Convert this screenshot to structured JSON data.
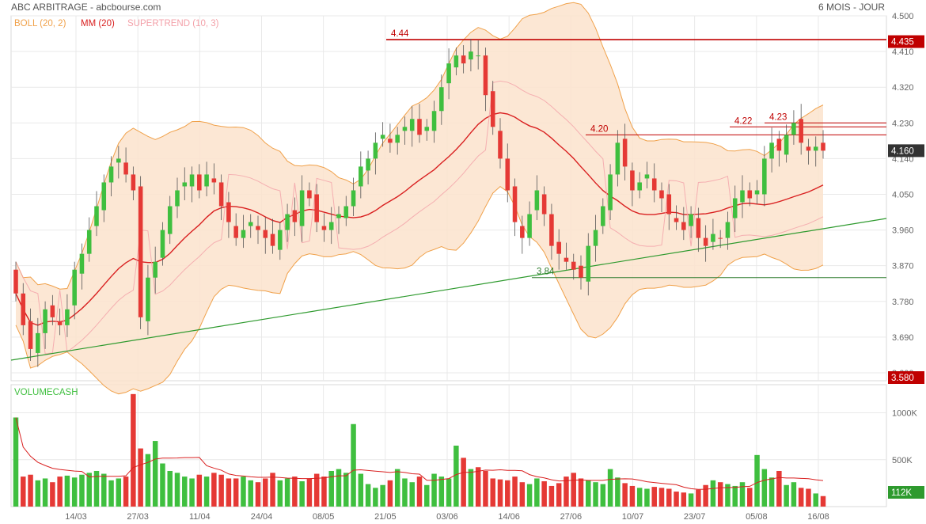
{
  "header": {
    "title": "ABC ARBITRAGE - abcbourse.com",
    "period": "6 MOIS - JOUR"
  },
  "legend": {
    "boll": "BOLL (20, 2)",
    "mm": "MM (20)",
    "supertrend": "SUPERTREND (10, 3)",
    "volume": "VOLUMECASH"
  },
  "colors": {
    "up": "#3fbf3f",
    "down": "#e53935",
    "boll_fill": "#fbe3cd",
    "boll_line": "#f0a14a",
    "mm": "#d92020",
    "supertrend": "#f3a0a8",
    "trendline": "#2e9a2e",
    "level": "#c00000",
    "grid": "#e9e9e9"
  },
  "chart_data": [
    {
      "type": "candlestick",
      "y_axis_ticks": [
        "4.500",
        "4.410",
        "4.320",
        "4.230",
        "4.140",
        "4.050",
        "3.960",
        "3.870",
        "3.780",
        "3.690",
        "3.600"
      ],
      "ylim": [
        3.58,
        4.5
      ],
      "x_tick_labels": [
        "14/03",
        "27/03",
        "11/04",
        "24/04",
        "08/05",
        "21/05",
        "03/06",
        "14/06",
        "27/06",
        "10/07",
        "23/07",
        "05/08",
        "16/08"
      ],
      "price_badges": {
        "high": "4.435",
        "last": "4.160",
        "low": "3.580"
      },
      "level_labels": [
        {
          "label": "4.44",
          "value": 4.44
        },
        {
          "label": "4.22",
          "value": 4.22
        },
        {
          "label": "4.23",
          "value": 4.23
        },
        {
          "label": "4.20",
          "value": 4.2
        },
        {
          "label": "3.84",
          "value": 3.84
        }
      ],
      "close": [
        3.8,
        3.72,
        3.66,
        3.7,
        3.76,
        3.74,
        3.72,
        3.76,
        3.86,
        3.9,
        3.96,
        4.02,
        4.08,
        4.12,
        4.14,
        4.1,
        4.06,
        3.74,
        3.84,
        3.88,
        3.96,
        4.02,
        4.06,
        4.08,
        4.1,
        4.06,
        4.1,
        4.08,
        4.02,
        3.98,
        3.94,
        3.96,
        3.98,
        3.96,
        3.94,
        3.92,
        3.96,
        4.0,
        3.98,
        4.06,
        4.04,
        3.98,
        3.96,
        3.98,
        4.0,
        4.02,
        4.06,
        4.12,
        4.14,
        4.18,
        4.2,
        4.18,
        4.2,
        4.22,
        4.24,
        4.2,
        4.22,
        4.26,
        4.32,
        4.38,
        4.4,
        4.38,
        4.41,
        4.4,
        4.3,
        4.22,
        4.14,
        4.06,
        3.98,
        3.94,
        4.0,
        4.06,
        4.0,
        3.92,
        3.9,
        3.88,
        3.86,
        3.84,
        3.92,
        3.96,
        4.02,
        4.1,
        4.18,
        4.12,
        4.06,
        4.08,
        4.1,
        4.06,
        4.04,
        4.0,
        3.98,
        3.96,
        4.0,
        3.94,
        3.92,
        3.95,
        3.94,
        3.98,
        4.04,
        4.06,
        4.04,
        4.06,
        4.14,
        4.18,
        4.16,
        4.2,
        4.23,
        4.18,
        4.16,
        4.17,
        4.16
      ],
      "volume_axis_ticks": [
        "1000K",
        "500K"
      ],
      "volume_badge": "112K",
      "volume": [
        950,
        320,
        340,
        280,
        300,
        260,
        320,
        330,
        310,
        340,
        360,
        380,
        350,
        280,
        300,
        320,
        1200,
        620,
        560,
        700,
        460,
        380,
        360,
        320,
        300,
        340,
        320,
        360,
        340,
        300,
        300,
        320,
        280,
        260,
        300,
        360,
        280,
        300,
        320,
        270,
        300,
        350,
        320,
        380,
        400,
        360,
        880,
        350,
        240,
        200,
        230,
        280,
        400,
        300,
        260,
        320,
        230,
        350,
        320,
        300,
        650,
        520,
        400,
        420,
        380,
        300,
        290,
        280,
        320,
        260,
        240,
        300,
        270,
        220,
        250,
        320,
        360,
        300,
        280,
        260,
        240,
        400,
        310,
        250,
        220,
        200,
        190,
        210,
        200,
        190,
        160,
        150,
        140,
        180,
        230,
        280,
        260,
        240,
        220,
        260,
        200,
        550,
        400,
        310,
        380,
        230,
        260,
        200,
        190,
        140,
        112
      ]
    }
  ]
}
